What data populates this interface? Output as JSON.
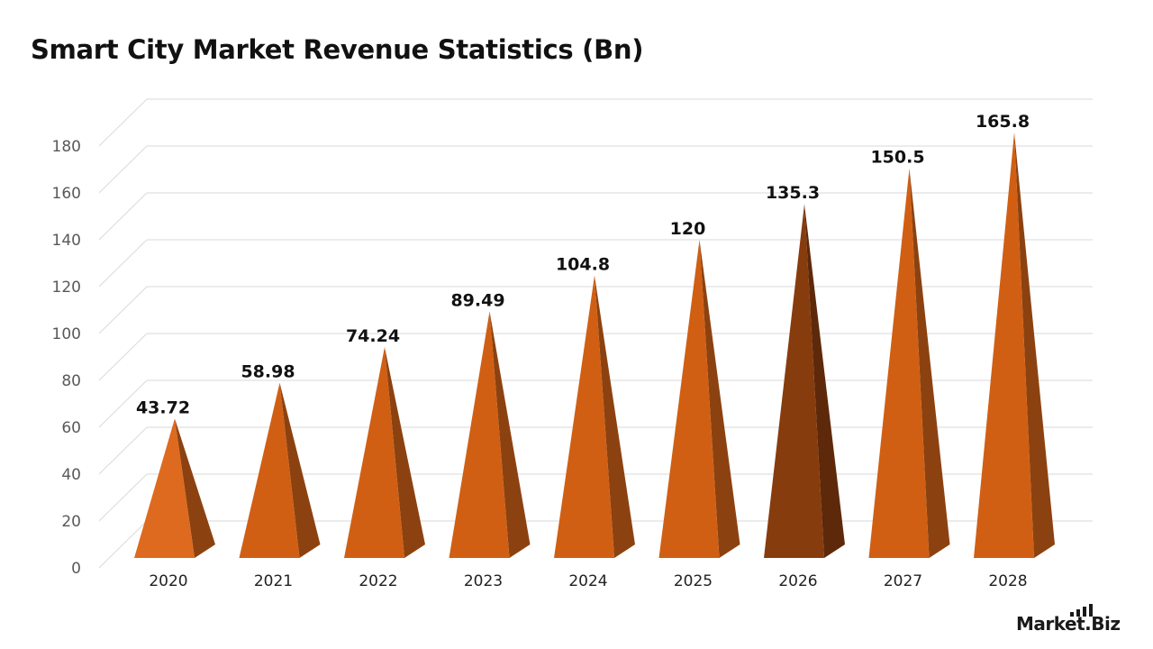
{
  "title": "Smart City Market Revenue Statistics (Bn)",
  "brand": {
    "name": "Market.Biz"
  },
  "chart_data": {
    "type": "bar",
    "shape": "3d-pyramid",
    "categories": [
      "2020",
      "2021",
      "2022",
      "2023",
      "2024",
      "2025",
      "2026",
      "2027",
      "2028"
    ],
    "values": [
      43.72,
      58.98,
      74.24,
      89.49,
      104.8,
      120,
      135.3,
      150.5,
      165.8
    ],
    "value_labels": [
      "43.72",
      "58.98",
      "74.24",
      "89.49",
      "104.8",
      "120",
      "135.3",
      "150.5",
      "165.8"
    ],
    "title": "Smart City Market Revenue Statistics (Bn)",
    "xlabel": "",
    "ylabel": "",
    "ylim": [
      0,
      180
    ],
    "yticks": [
      0,
      20,
      40,
      60,
      80,
      100,
      120,
      140,
      160,
      180
    ],
    "grid": true,
    "legend": "none",
    "highlight_index": 6,
    "colors": {
      "front": "#d05f14",
      "side": "#8c4210",
      "first_front": "#dd6a1e",
      "highlight_front": "#873c0e",
      "highlight_side": "#5e290a",
      "grid": "#d9d9d9",
      "tick_text": "#595959",
      "label_text": "#111111"
    }
  }
}
